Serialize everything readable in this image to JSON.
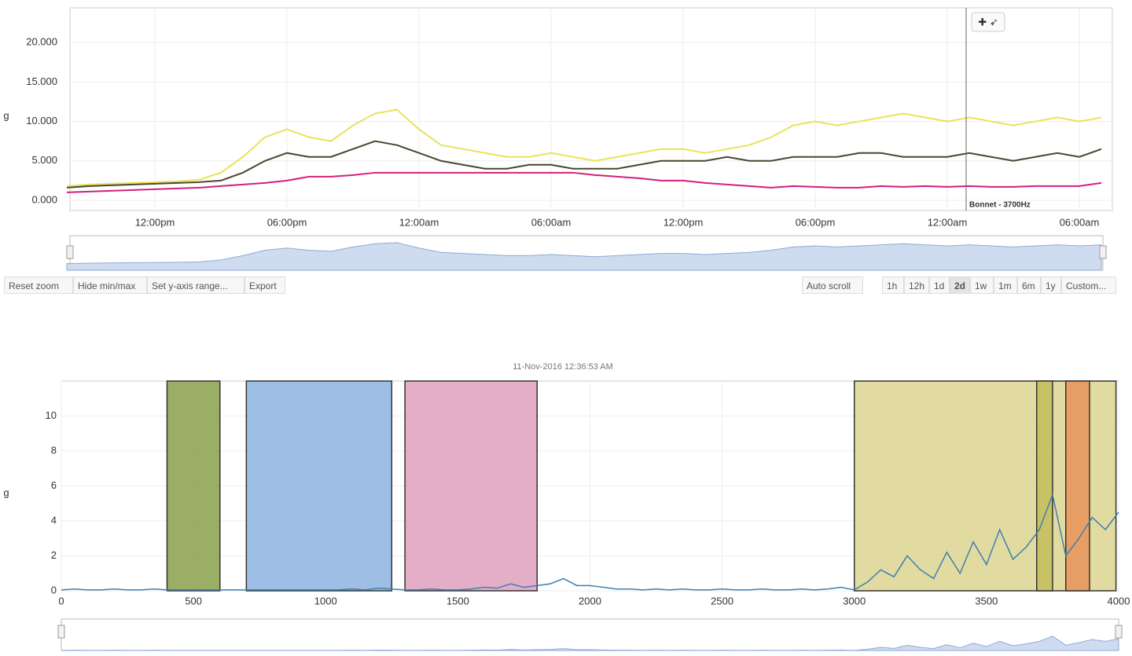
{
  "toolbar": {
    "left_buttons": [
      "Reset zoom",
      "Hide min/max",
      "Set y-axis range...",
      "Export"
    ],
    "auto_button": "Auto scroll",
    "range_buttons": [
      "1h",
      "12h",
      "1d",
      "2d",
      "1w",
      "1m",
      "6m",
      "1y",
      "Custom..."
    ],
    "selected_range": "2d"
  },
  "chart_data": [
    {
      "type": "line",
      "ylabel": "g",
      "annotation": "Bonnet - 3700Hz",
      "categories": [
        null,
        null,
        null,
        null,
        "12:00pm",
        null,
        null,
        null,
        null,
        null,
        "06:00pm",
        null,
        null,
        null,
        null,
        null,
        "12:00am",
        null,
        null,
        null,
        null,
        null,
        "06:00am",
        null,
        null,
        null,
        null,
        null,
        "12:00pm",
        null,
        null,
        null,
        null,
        null,
        "06:00pm",
        null,
        null,
        null,
        null,
        null,
        "12:00am",
        null,
        null,
        null,
        null,
        null,
        "06:00am",
        null
      ],
      "series": [
        {
          "color": "#e8e35a",
          "values": [
            1.8,
            2.0,
            2.1,
            2.2,
            2.3,
            2.4,
            2.6,
            3.5,
            5.5,
            8.0,
            9.0,
            8.0,
            7.5,
            9.5,
            11.0,
            11.5,
            9.0,
            7.0,
            6.5,
            6.0,
            5.5,
            5.5,
            6.0,
            5.5,
            5.0,
            5.5,
            6.0,
            6.5,
            6.5,
            6.0,
            6.5,
            7.0,
            8.0,
            9.5,
            10.0,
            9.5,
            10.0,
            10.5,
            11.0,
            10.5,
            10.0,
            10.5,
            10.0,
            9.5,
            10.0,
            10.5,
            10.0,
            10.5
          ]
        },
        {
          "color": "#4a4632",
          "values": [
            1.6,
            1.8,
            1.9,
            2.0,
            2.1,
            2.2,
            2.3,
            2.5,
            3.5,
            5.0,
            6.0,
            5.5,
            5.5,
            6.5,
            7.5,
            7.0,
            6.0,
            5.0,
            4.5,
            4.0,
            4.0,
            4.5,
            4.5,
            4.0,
            4.0,
            4.0,
            4.5,
            5.0,
            5.0,
            5.0,
            5.5,
            5.0,
            5.0,
            5.5,
            5.5,
            5.5,
            6.0,
            6.0,
            5.5,
            5.5,
            5.5,
            6.0,
            5.5,
            5.0,
            5.5,
            6.0,
            5.5,
            6.5
          ]
        },
        {
          "color": "#d21f7d",
          "values": [
            1.0,
            1.1,
            1.2,
            1.3,
            1.4,
            1.5,
            1.6,
            1.8,
            2.0,
            2.2,
            2.5,
            3.0,
            3.0,
            3.2,
            3.5,
            3.5,
            3.5,
            3.5,
            3.5,
            3.5,
            3.5,
            3.5,
            3.5,
            3.5,
            3.2,
            3.0,
            2.8,
            2.5,
            2.5,
            2.2,
            2.0,
            1.8,
            1.6,
            1.8,
            1.7,
            1.6,
            1.6,
            1.8,
            1.7,
            1.8,
            1.7,
            1.8,
            1.7,
            1.7,
            1.8,
            1.8,
            1.8,
            2.2
          ]
        }
      ],
      "ylim": [
        -1.3,
        24.4
      ],
      "yticks": [
        {
          "value": 0,
          "label": "0.000"
        },
        {
          "value": 5,
          "label": "5.000"
        },
        {
          "value": 10,
          "label": "10.000"
        },
        {
          "value": 15,
          "label": "15.000"
        },
        {
          "value": 20,
          "label": "20.000"
        }
      ],
      "grid": true
    },
    {
      "type": "line",
      "title": "11-Nov-2016 12:36:53 AM",
      "ylabel": "g",
      "x": [
        0,
        50,
        100,
        150,
        200,
        250,
        300,
        350,
        400,
        450,
        500,
        550,
        600,
        650,
        700,
        750,
        800,
        850,
        900,
        950,
        1000,
        1050,
        1100,
        1150,
        1200,
        1250,
        1300,
        1350,
        1400,
        1450,
        1500,
        1550,
        1600,
        1650,
        1700,
        1750,
        1800,
        1850,
        1900,
        1950,
        2000,
        2050,
        2100,
        2150,
        2200,
        2250,
        2300,
        2350,
        2400,
        2450,
        2500,
        2550,
        2600,
        2650,
        2700,
        2750,
        2800,
        2850,
        2900,
        2950,
        3000,
        3050,
        3100,
        3150,
        3200,
        3250,
        3300,
        3350,
        3400,
        3450,
        3500,
        3550,
        3600,
        3650,
        3700,
        3750,
        3800,
        3850,
        3900,
        3950,
        4000
      ],
      "series": [
        {
          "color": "#3f7fae",
          "values": [
            0.05,
            0.1,
            0.05,
            0.05,
            0.1,
            0.05,
            0.05,
            0.1,
            0.05,
            0.05,
            0.05,
            0.05,
            0.05,
            0.05,
            0.05,
            0.05,
            0.05,
            0.05,
            0.05,
            0.05,
            0.05,
            0.05,
            0.1,
            0.05,
            0.15,
            0.1,
            0.05,
            0.05,
            0.1,
            0.05,
            0.05,
            0.1,
            0.2,
            0.15,
            0.4,
            0.2,
            0.3,
            0.4,
            0.7,
            0.3,
            0.3,
            0.2,
            0.1,
            0.1,
            0.05,
            0.1,
            0.05,
            0.1,
            0.05,
            0.05,
            0.1,
            0.05,
            0.05,
            0.1,
            0.05,
            0.05,
            0.1,
            0.05,
            0.1,
            0.2,
            0.05,
            0.5,
            1.2,
            0.8,
            2.0,
            1.2,
            0.7,
            2.2,
            1.0,
            2.8,
            1.5,
            3.5,
            1.8,
            2.5,
            3.5,
            5.5,
            2.0,
            3.0,
            4.2,
            3.5,
            4.5
          ]
        }
      ],
      "bands": [
        {
          "from": 400,
          "to": 600,
          "color": "#8aa04a"
        },
        {
          "from": 700,
          "to": 1250,
          "color": "#8db3e2"
        },
        {
          "from": 1300,
          "to": 1800,
          "color": "#dfa0c0"
        },
        {
          "from": 3000,
          "to": 3990,
          "color": "#ddd591"
        },
        {
          "from": 3690,
          "to": 3750,
          "color": "#c2bd5a"
        },
        {
          "from": 3800,
          "to": 3890,
          "color": "#e8935a"
        }
      ],
      "xlim": [
        0,
        4000
      ],
      "xticks": [
        0,
        500,
        1000,
        1500,
        2000,
        2500,
        3000,
        3500,
        4000
      ],
      "ylim": [
        0,
        12
      ],
      "yticks": [
        0,
        2,
        4,
        6,
        8,
        10
      ],
      "grid": true
    }
  ]
}
